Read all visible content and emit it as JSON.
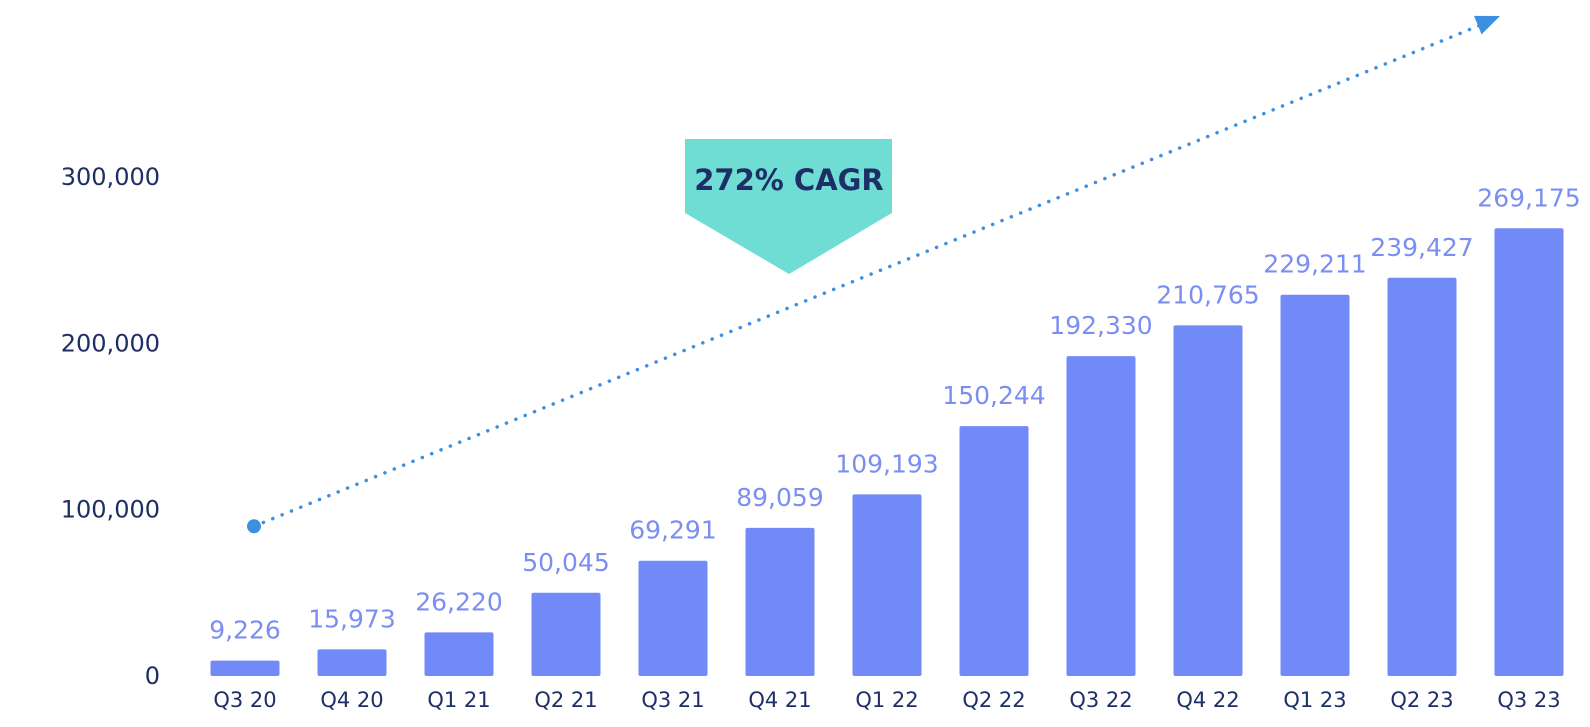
{
  "chart_data": {
    "type": "bar",
    "title": "",
    "xlabel": "",
    "ylabel": "",
    "categories": [
      "Q3 20",
      "Q4 20",
      "Q1 21",
      "Q2 21",
      "Q3 21",
      "Q4 21",
      "Q1 22",
      "Q2 22",
      "Q3 22",
      "Q4 22",
      "Q1 23",
      "Q2 23",
      "Q3 23"
    ],
    "values": [
      9226,
      15973,
      26220,
      50045,
      69291,
      89059,
      109193,
      150244,
      192330,
      210765,
      229211,
      239427,
      269175
    ],
    "data_labels": [
      "9,226",
      "15,973",
      "26,220",
      "50,045",
      "69,291",
      "89,059",
      "109,193",
      "150,244",
      "192,330",
      "210,765",
      "229,211",
      "239,427",
      "269,175"
    ],
    "ylim": [
      0,
      300000
    ],
    "y_ticks": [
      {
        "value": 0,
        "label": "0"
      },
      {
        "value": 100000,
        "label": "100,000"
      },
      {
        "value": 200000,
        "label": "200,000"
      },
      {
        "value": 300000,
        "label": "300,000"
      }
    ],
    "grid": false,
    "legend": "none",
    "annotation": {
      "text": "272% CAGR",
      "style": "pentagon-callout"
    },
    "trend_arrow": {
      "style": "dotted",
      "start_value": 90000,
      "direction": "up-right"
    },
    "colors": {
      "bar": "#7289f8",
      "data_label": "#7b8ef2",
      "axis_text": "#1e2f66",
      "callout_fill": "#6fddd3",
      "callout_text": "#1e2f66",
      "trend": "#3d8fe0"
    }
  }
}
